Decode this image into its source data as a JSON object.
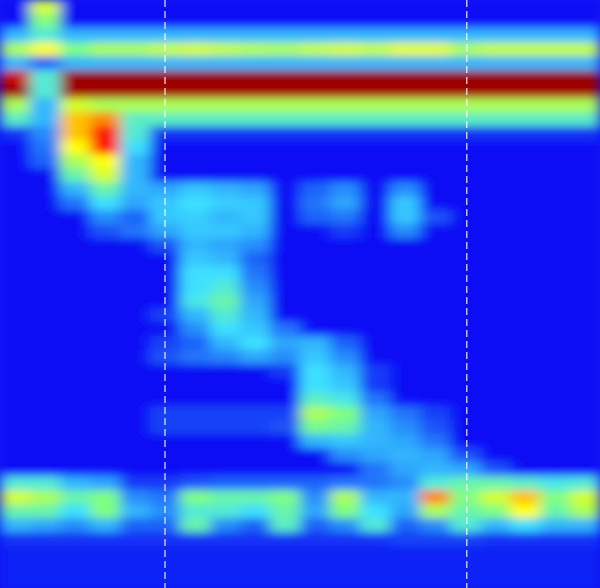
{
  "chart_data": {
    "type": "heatmap",
    "tick_labels": false,
    "zlim": [
      0,
      100
    ],
    "cells": [
      [
        10,
        60,
        10,
        10,
        10,
        10,
        10,
        10,
        10,
        10,
        10,
        10,
        10,
        10,
        10,
        10,
        10,
        10,
        10,
        10
      ],
      [
        10,
        50,
        10,
        10,
        10,
        10,
        10,
        10,
        10,
        10,
        10,
        10,
        10,
        10,
        10,
        10,
        10,
        10,
        10,
        10
      ],
      [
        30,
        40,
        30,
        30,
        30,
        30,
        30,
        30,
        30,
        30,
        30,
        30,
        30,
        30,
        30,
        30,
        30,
        30,
        30,
        30
      ],
      [
        55,
        65,
        50,
        55,
        55,
        58,
        60,
        58,
        56,
        55,
        58,
        60,
        58,
        62,
        62,
        55,
        58,
        58,
        58,
        58
      ],
      [
        30,
        20,
        30,
        30,
        30,
        30,
        30,
        30,
        30,
        30,
        30,
        30,
        30,
        30,
        30,
        30,
        30,
        30,
        30,
        30
      ],
      [
        90,
        40,
        95,
        95,
        95,
        95,
        95,
        95,
        95,
        95,
        95,
        95,
        95,
        95,
        95,
        95,
        95,
        95,
        95,
        95
      ],
      [
        95,
        40,
        95,
        95,
        95,
        95,
        95,
        95,
        95,
        95,
        95,
        95,
        95,
        95,
        95,
        95,
        95,
        95,
        95,
        95
      ],
      [
        55,
        30,
        60,
        55,
        55,
        55,
        55,
        55,
        55,
        55,
        55,
        55,
        55,
        55,
        55,
        55,
        55,
        55,
        55,
        55
      ],
      [
        42,
        30,
        70,
        75,
        42,
        42,
        42,
        42,
        42,
        42,
        42,
        42,
        42,
        42,
        42,
        42,
        42,
        42,
        42,
        42
      ],
      [
        14,
        25,
        70,
        85,
        40,
        14,
        14,
        14,
        14,
        14,
        14,
        14,
        14,
        14,
        14,
        14,
        14,
        14,
        14,
        14
      ],
      [
        10,
        22,
        65,
        85,
        35,
        10,
        10,
        10,
        10,
        10,
        10,
        10,
        10,
        10,
        10,
        10,
        10,
        10,
        10,
        10
      ],
      [
        10,
        20,
        55,
        65,
        30,
        10,
        10,
        10,
        10,
        10,
        10,
        10,
        10,
        10,
        10,
        10,
        10,
        10,
        10,
        10
      ],
      [
        10,
        10,
        45,
        60,
        30,
        10,
        10,
        10,
        10,
        10,
        10,
        10,
        10,
        10,
        10,
        10,
        10,
        10,
        10,
        10
      ],
      [
        10,
        10,
        30,
        45,
        30,
        28,
        32,
        30,
        28,
        10,
        20,
        25,
        10,
        25,
        10,
        10,
        10,
        10,
        10,
        10
      ],
      [
        10,
        10,
        22,
        35,
        28,
        32,
        35,
        33,
        32,
        10,
        22,
        28,
        10,
        32,
        10,
        10,
        10,
        10,
        10,
        10
      ],
      [
        10,
        10,
        10,
        25,
        20,
        32,
        33,
        30,
        32,
        10,
        20,
        22,
        10,
        32,
        18,
        10,
        10,
        10,
        10,
        10
      ],
      [
        10,
        10,
        10,
        18,
        22,
        28,
        32,
        32,
        30,
        10,
        10,
        15,
        10,
        25,
        10,
        10,
        10,
        10,
        10,
        10
      ],
      [
        10,
        10,
        10,
        10,
        10,
        18,
        30,
        28,
        25,
        10,
        10,
        10,
        10,
        10,
        10,
        10,
        10,
        10,
        10,
        10
      ],
      [
        10,
        10,
        10,
        10,
        10,
        10,
        32,
        30,
        20,
        10,
        10,
        10,
        10,
        10,
        10,
        10,
        10,
        10,
        10,
        10
      ],
      [
        10,
        10,
        10,
        10,
        10,
        10,
        35,
        35,
        22,
        10,
        10,
        10,
        10,
        10,
        10,
        10,
        10,
        10,
        10,
        10
      ],
      [
        10,
        10,
        10,
        10,
        10,
        10,
        35,
        40,
        25,
        10,
        10,
        10,
        10,
        10,
        10,
        10,
        10,
        10,
        10,
        10
      ],
      [
        10,
        10,
        10,
        10,
        10,
        10,
        38,
        45,
        28,
        10,
        10,
        10,
        10,
        10,
        10,
        10,
        10,
        10,
        10,
        10
      ],
      [
        10,
        10,
        10,
        10,
        10,
        16,
        30,
        40,
        30,
        10,
        10,
        10,
        10,
        10,
        10,
        10,
        10,
        10,
        10,
        10
      ],
      [
        10,
        10,
        10,
        10,
        10,
        10,
        25,
        35,
        32,
        22,
        10,
        10,
        10,
        10,
        10,
        10,
        10,
        10,
        10,
        10
      ],
      [
        10,
        10,
        10,
        10,
        10,
        16,
        20,
        30,
        35,
        28,
        30,
        20,
        10,
        10,
        10,
        10,
        10,
        10,
        10,
        10
      ],
      [
        10,
        10,
        10,
        10,
        10,
        18,
        22,
        24,
        28,
        25,
        32,
        25,
        10,
        10,
        10,
        10,
        10,
        10,
        10,
        10
      ],
      [
        10,
        10,
        10,
        10,
        10,
        10,
        10,
        10,
        10,
        15,
        35,
        30,
        15,
        10,
        10,
        10,
        10,
        10,
        10,
        10
      ],
      [
        10,
        10,
        10,
        10,
        10,
        10,
        10,
        10,
        10,
        10,
        35,
        32,
        15,
        10,
        10,
        10,
        10,
        10,
        10,
        10
      ],
      [
        10,
        10,
        10,
        10,
        10,
        10,
        10,
        10,
        10,
        10,
        42,
        38,
        22,
        10,
        10,
        10,
        10,
        10,
        10,
        10
      ],
      [
        10,
        10,
        10,
        10,
        10,
        16,
        16,
        16,
        16,
        16,
        55,
        50,
        28,
        22,
        16,
        10,
        10,
        10,
        10,
        10
      ],
      [
        10,
        10,
        10,
        10,
        10,
        16,
        16,
        16,
        16,
        18,
        48,
        45,
        30,
        25,
        18,
        10,
        10,
        10,
        10,
        10
      ],
      [
        10,
        10,
        10,
        10,
        10,
        10,
        10,
        10,
        10,
        10,
        30,
        32,
        30,
        28,
        22,
        10,
        10,
        10,
        10,
        10
      ],
      [
        10,
        10,
        10,
        10,
        10,
        10,
        10,
        10,
        10,
        10,
        10,
        25,
        28,
        30,
        28,
        18,
        10,
        10,
        10,
        10
      ],
      [
        10,
        10,
        10,
        10,
        10,
        10,
        10,
        10,
        10,
        10,
        10,
        10,
        22,
        28,
        30,
        28,
        18,
        10,
        10,
        10
      ],
      [
        40,
        40,
        30,
        28,
        15,
        15,
        18,
        20,
        20,
        20,
        20,
        22,
        22,
        25,
        40,
        45,
        45,
        42,
        38,
        40
      ],
      [
        60,
        55,
        45,
        50,
        25,
        22,
        50,
        45,
        45,
        50,
        25,
        55,
        30,
        30,
        75,
        50,
        60,
        70,
        50,
        60
      ],
      [
        45,
        45,
        35,
        50,
        30,
        25,
        40,
        40,
        35,
        45,
        28,
        50,
        35,
        28,
        55,
        45,
        50,
        65,
        45,
        55
      ],
      [
        30,
        28,
        25,
        30,
        20,
        20,
        45,
        25,
        20,
        42,
        20,
        25,
        40,
        20,
        25,
        40,
        30,
        35,
        30,
        30
      ],
      [
        14,
        14,
        14,
        14,
        14,
        14,
        14,
        14,
        14,
        14,
        14,
        14,
        14,
        16,
        16,
        16,
        14,
        14,
        14,
        14
      ],
      [
        12,
        12,
        12,
        12,
        12,
        12,
        12,
        12,
        12,
        12,
        12,
        12,
        12,
        12,
        12,
        12,
        12,
        12,
        12,
        12
      ],
      [
        12,
        12,
        12,
        12,
        12,
        12,
        12,
        12,
        12,
        12,
        12,
        12,
        12,
        12,
        12,
        12,
        12,
        12,
        12,
        12
      ],
      [
        12,
        12,
        12,
        12,
        12,
        12,
        12,
        12,
        12,
        12,
        12,
        12,
        12,
        12,
        12,
        12,
        12,
        12,
        12,
        12
      ]
    ]
  }
}
